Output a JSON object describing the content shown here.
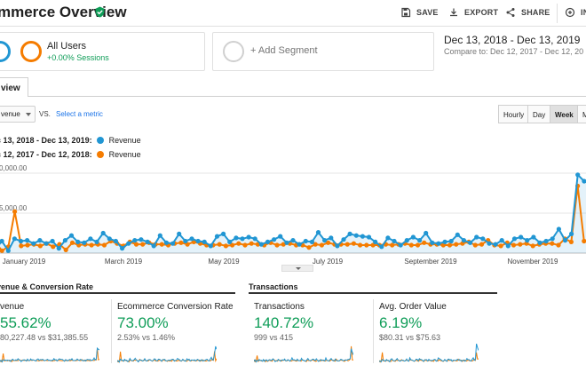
{
  "header": {
    "title": "mmerce Overview",
    "save_label": "SAVE",
    "export_label": "EXPORT",
    "share_label": "SHARE",
    "insights_label": "IN"
  },
  "segments": {
    "primary": {
      "name": "All Users",
      "sessions": "+0.00% Sessions"
    },
    "add_label": "+ Add Segment"
  },
  "dates": {
    "range": "Dec 13, 2018 - Dec 13, 2019",
    "compare": "Compare to: Dec 12, 2017 - Dec 12, 20"
  },
  "tab": {
    "label": "view"
  },
  "controls": {
    "metric": "venue",
    "vs": "VS.",
    "select_metric": "Select a metric",
    "granularity": [
      "Hourly",
      "Day",
      "Week",
      "M"
    ],
    "active_granularity": "Week"
  },
  "legend": [
    {
      "range": "c 13, 2018 - Dec 13, 2019:",
      "series": "Revenue",
      "color": "#2196d3"
    },
    {
      "range": "c 12, 2017 - Dec 12, 2018:",
      "series": "Revenue",
      "color": "#f57c00"
    }
  ],
  "chart_data": {
    "type": "line",
    "y_ticks": [
      "0,000.00",
      "5,000.00"
    ],
    "x_ticks": [
      "January 2019",
      "March 2019",
      "May 2019",
      "July 2019",
      "September 2019",
      "November 2019"
    ],
    "series": [
      {
        "name": "Revenue",
        "color": "#2196d3",
        "values": [
          500,
          1500,
          300,
          1800,
          1500,
          1600,
          1200,
          1600,
          1200,
          1500,
          600,
          1600,
          2200,
          1400,
          1300,
          1800,
          1400,
          2500,
          1800,
          1500,
          600,
          1200,
          1600,
          1700,
          1400,
          900,
          2200,
          1300,
          1200,
          2400,
          1500,
          1800,
          1500,
          1400,
          900,
          2100,
          2400,
          1400,
          1900,
          1800,
          2000,
          1800,
          1100,
          1400,
          1700,
          2100,
          1300,
          1600,
          1100,
          1500,
          1400,
          2600,
          1600,
          1900,
          900,
          1700,
          2400,
          2200,
          2100,
          2000,
          1400,
          800,
          1900,
          1500,
          1000,
          1600,
          2000,
          1600,
          2500,
          1300,
          1200,
          1400,
          1500,
          2300,
          1600,
          1300,
          2000,
          1800,
          1200,
          1100,
          1600,
          900,
          1800,
          2000,
          1600,
          2000,
          1300,
          1500,
          1800,
          3000,
          1600,
          2400,
          9800,
          9000,
          8600
        ]
      },
      {
        "name": "Revenue",
        "color": "#f57c00",
        "values": [
          1300,
          300,
          800,
          5200,
          900,
          1000,
          1100,
          900,
          1200,
          800,
          1100,
          400,
          1300,
          1000,
          1100,
          1000,
          1100,
          1000,
          1500,
          1200,
          900,
          1400,
          1100,
          1100,
          1300,
          1100,
          1100,
          1000,
          1200,
          1300,
          1100,
          1400,
          1200,
          1000,
          1000,
          1100,
          900,
          1000,
          1200,
          1000,
          1200,
          1100,
          1000,
          1300,
          1000,
          1100,
          1200,
          1000,
          1000,
          700,
          1100,
          1000,
          1300,
          1100,
          1100,
          1100,
          1200,
          1000,
          1000,
          1000,
          1000,
          1100,
          1000,
          1100,
          1200,
          1000,
          1000,
          1300,
          1100,
          1100,
          1000,
          1000,
          1100,
          1200,
          1400,
          1000,
          1100,
          1600,
          1000,
          900,
          1300,
          1000,
          1100,
          1200,
          900,
          1100,
          1200,
          1200,
          1000,
          1800,
          1400,
          8400,
          1500,
          1800
        ]
      }
    ]
  },
  "sections": {
    "revenue_title": "venue & Conversion Rate",
    "transactions_title": "Transactions"
  },
  "cards": [
    {
      "label": "venue",
      "value": "55.62%",
      "sub": "80,227.48 vs $31,385.55"
    },
    {
      "label": "Ecommerce Conversion Rate",
      "value": "73.00%",
      "sub": "2.53% vs 1.46%"
    },
    {
      "label": "Transactions",
      "value": "140.72%",
      "sub": "999 vs 415"
    },
    {
      "label": "Avg. Order Value",
      "value": "6.19%",
      "sub": "$80.31 vs $75.63"
    }
  ],
  "colors": {
    "current": "#2196d3",
    "previous": "#f57c00",
    "positive": "#0f9d58",
    "link": "#1a73e8"
  }
}
